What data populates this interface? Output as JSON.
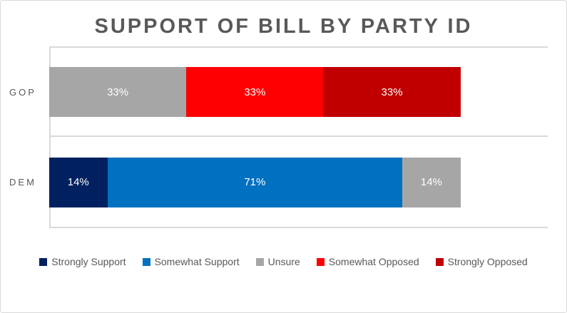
{
  "colors": {
    "title_text": "#595959",
    "axis_text": "#595959",
    "legend_text": "#595959",
    "gridline": "#d9d9d9",
    "frame_border": "#d9d9d9",
    "data_label": "#ffffff"
  },
  "chart_data": {
    "type": "bar",
    "orientation": "horizontal",
    "stacked": true,
    "title": "SUPPORT OF BILL BY PARTY ID",
    "categories": [
      "GOP",
      "DEM"
    ],
    "series": [
      {
        "name": "Strongly Support",
        "color": "#002060",
        "values": [
          0,
          14
        ],
        "labels": [
          "",
          "14%"
        ]
      },
      {
        "name": "Somewhat Support",
        "color": "#0070c0",
        "values": [
          0,
          71
        ],
        "labels": [
          "",
          "71%"
        ]
      },
      {
        "name": "Unsure",
        "color": "#a6a6a6",
        "values": [
          33,
          14
        ],
        "labels": [
          "33%",
          "14%"
        ]
      },
      {
        "name": "Somewhat Opposed",
        "color": "#ff0000",
        "values": [
          33,
          0
        ],
        "labels": [
          "33%",
          ""
        ]
      },
      {
        "name": "Strongly Opposed",
        "color": "#c00000",
        "values": [
          33,
          0
        ],
        "labels": [
          "33%",
          ""
        ]
      }
    ],
    "xlabel": "",
    "ylabel": "",
    "xlim": [
      0,
      120
    ],
    "grid": "category-boundary-lines",
    "legend_position": "bottom",
    "data_labels_shown": true
  }
}
